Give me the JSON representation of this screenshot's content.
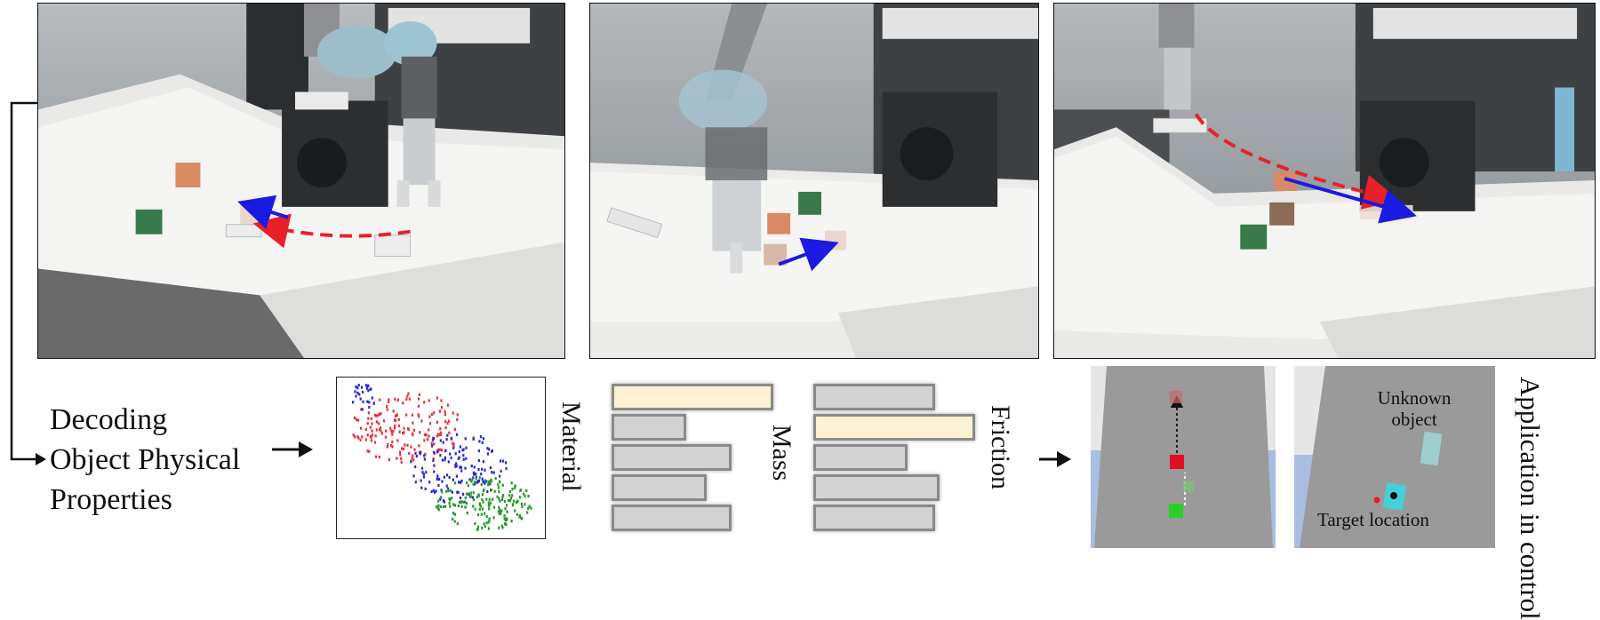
{
  "decoding_label": {
    "line1": "Decoding",
    "line2": "Object Physical",
    "line3": "Properties"
  },
  "property_labels": {
    "material": "Material",
    "mass": "Mass",
    "friction": "Friction"
  },
  "application_label": {
    "line1": "Application",
    "line2": "in control"
  },
  "sim_labels": {
    "unknown_line1": "Unknown",
    "unknown_line2": "object",
    "target": "Target location"
  },
  "colors": {
    "trajectory_red": "#e8202a",
    "trajectory_blue": "#1a1ae0",
    "highlight_bar": "#fdf1d3",
    "bar_gray": "#d2d2d2",
    "sim_floor": "#9a9a9a",
    "sim_water": "#a9bedf",
    "cluster_red": "#e8323c",
    "cluster_blue": "#2a2ad8",
    "cluster_green": "#2a9a2a"
  },
  "mass_bars": [
    {
      "level": 1.0,
      "highlight": true
    },
    {
      "level": 0.46,
      "highlight": false
    },
    {
      "level": 0.74,
      "highlight": false
    },
    {
      "level": 0.59,
      "highlight": false
    },
    {
      "level": 0.74,
      "highlight": false
    }
  ],
  "friction_bars": [
    {
      "level": 0.75,
      "highlight": false
    },
    {
      "level": 1.0,
      "highlight": true
    },
    {
      "level": 0.58,
      "highlight": false
    },
    {
      "level": 0.78,
      "highlight": false
    },
    {
      "level": 0.75,
      "highlight": false
    }
  ],
  "icons": [
    "robot-arm-icon",
    "arrow-right-icon",
    "elbow-arrow-icon"
  ]
}
